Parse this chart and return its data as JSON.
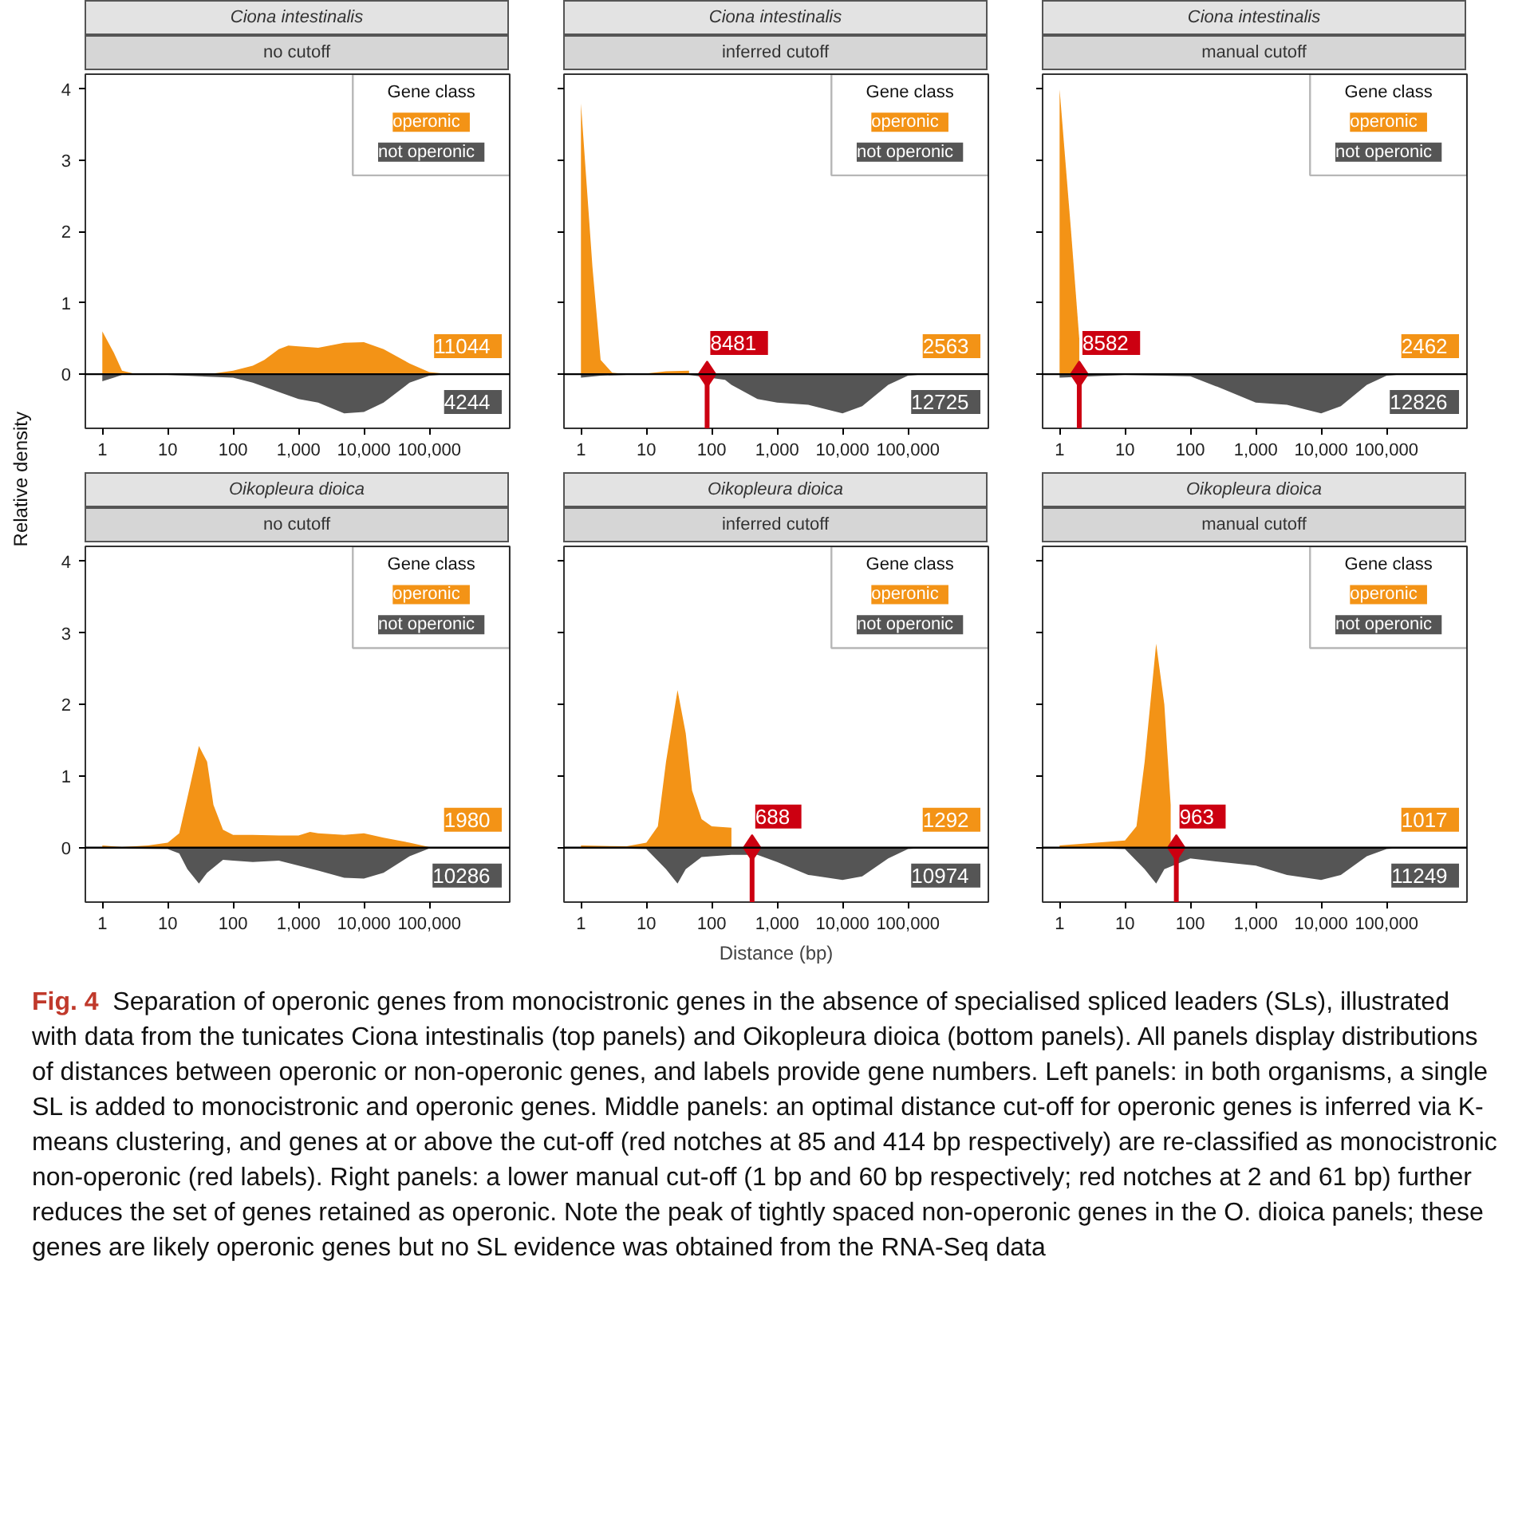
{
  "chart_data": [
    {
      "type": "area",
      "title": "Ciona intestinalis",
      "subtitle": "no cutoff",
      "ylabel": "Relative density",
      "log": "x",
      "xlim": [
        0.55,
        1700000
      ],
      "ylim": [
        -0.76,
        4.21
      ],
      "xticks": [
        1,
        10,
        100,
        {
          "value": 1000,
          "label": "1,000"
        },
        {
          "value": 10000,
          "label": "10,000"
        },
        {
          "value": 100000,
          "label": "100,000"
        }
      ],
      "yticks": [
        0,
        1,
        2,
        3,
        4
      ],
      "grid": false,
      "legend": "top right",
      "legend_title": "Gene class",
      "series": [
        {
          "name": "operonic",
          "color": "#f39316",
          "x": [
            1,
            1.5,
            2,
            3,
            10,
            50,
            100,
            200,
            300,
            500,
            700,
            1000,
            2000,
            3000,
            5000,
            10000,
            20000,
            50000,
            100000,
            200000,
            1000000
          ],
          "values": [
            0.6,
            0.3,
            0.05,
            0.01,
            0.01,
            0.01,
            0.05,
            0.12,
            0.2,
            0.35,
            0.4,
            0.39,
            0.37,
            0.4,
            0.44,
            0.45,
            0.35,
            0.15,
            0.03,
            0,
            0
          ]
        },
        {
          "name": "not operonic",
          "color": "#555555",
          "x": [
            1,
            1.5,
            2,
            10,
            100,
            200,
            500,
            1000,
            2000,
            5000,
            10000,
            20000,
            50000,
            100000,
            200000,
            1000000
          ],
          "values": [
            -0.1,
            -0.05,
            -0.01,
            -0.01,
            -0.05,
            -0.12,
            -0.25,
            -0.35,
            -0.4,
            -0.55,
            -0.53,
            -0.4,
            -0.12,
            -0.02,
            0,
            0
          ]
        }
      ],
      "ref_lines": [
        {
          "axis": "y",
          "value": 0,
          "color": "#000000"
        }
      ],
      "annotations": [
        "11044",
        "4244"
      ]
    },
    {
      "type": "area",
      "title": "Ciona intestinalis",
      "subtitle": "inferred cutoff",
      "log": "x",
      "xlim": [
        0.55,
        1700000
      ],
      "ylim": [
        -0.76,
        4.21
      ],
      "xticks": [
        1,
        10,
        100,
        {
          "value": 1000,
          "label": "1,000"
        },
        {
          "value": 10000,
          "label": "10,000"
        },
        {
          "value": 100000,
          "label": "100,000"
        }
      ],
      "yticks": [
        0,
        1,
        2,
        3,
        4
      ],
      "tick_labels": "x",
      "grid": false,
      "legend": "top right",
      "legend_title": "Gene class",
      "series": [
        {
          "name": "operonic",
          "color": "#f39316",
          "x": [
            1,
            1.5,
            2,
            3,
            5,
            10,
            20,
            45
          ],
          "values": [
            3.8,
            1.5,
            0.2,
            0.02,
            0,
            0.01,
            0.04,
            0.05
          ]
        },
        {
          "name": "not operonic",
          "color": "#555555",
          "x": [
            1,
            2,
            5,
            45,
            160,
            200,
            500,
            1000,
            3000,
            10000,
            20000,
            50000,
            100000,
            200000,
            1000000
          ],
          "values": [
            -0.05,
            -0.02,
            -0.01,
            -0.01,
            -0.08,
            -0.15,
            -0.35,
            -0.4,
            -0.43,
            -0.55,
            -0.45,
            -0.15,
            -0.02,
            0,
            0
          ]
        }
      ],
      "ref_lines": [
        {
          "axis": "y",
          "value": 0,
          "color": "#000000"
        },
        {
          "axis": "x",
          "value": 85,
          "color": "#cc0011"
        }
      ],
      "annotations": [
        "2563",
        "12725",
        {
          "text": "8481",
          "x": 85,
          "y": 0
        }
      ]
    },
    {
      "type": "area",
      "title": "Ciona intestinalis",
      "subtitle": "manual cutoff",
      "log": "x",
      "xlim": [
        0.55,
        1700000
      ],
      "ylim": [
        -0.76,
        4.21
      ],
      "xticks": [
        1,
        10,
        100,
        {
          "value": 1000,
          "label": "1,000"
        },
        {
          "value": 10000,
          "label": "10,000"
        },
        {
          "value": 100000,
          "label": "100,000"
        }
      ],
      "yticks": [
        0,
        1,
        2,
        3,
        4
      ],
      "tick_labels": "x",
      "grid": false,
      "legend": "top right",
      "legend_title": "Gene class",
      "series": [
        {
          "name": "operonic",
          "color": "#f39316",
          "x": [
            1,
            1.5,
            2
          ],
          "values": [
            4.0,
            2.0,
            0.5
          ]
        },
        {
          "name": "not operonic",
          "color": "#555555",
          "x": [
            1,
            10,
            100,
            300,
            1000,
            3000,
            10000,
            20000,
            50000,
            100000,
            200000,
            1000000
          ],
          "values": [
            -0.05,
            -0.01,
            -0.03,
            -0.2,
            -0.4,
            -0.43,
            -0.55,
            -0.45,
            -0.15,
            -0.02,
            0,
            0
          ]
        }
      ],
      "ref_lines": [
        {
          "axis": "y",
          "value": 0,
          "color": "#000000"
        },
        {
          "axis": "x",
          "value": 2,
          "color": "#cc0011"
        }
      ],
      "annotations": [
        "2462",
        "12826",
        {
          "text": "8582",
          "x": 2,
          "y": 0
        }
      ]
    },
    {
      "type": "area",
      "title": "Oikopleura dioica",
      "subtitle": "no cutoff",
      "log": "x",
      "xlim": [
        0.55,
        1700000
      ],
      "ylim": [
        -0.76,
        4.21
      ],
      "xticks": [
        1,
        10,
        100,
        {
          "value": 1000,
          "label": "1,000"
        },
        {
          "value": 10000,
          "label": "10,000"
        },
        {
          "value": 100000,
          "label": "100,000"
        }
      ],
      "yticks": [
        0,
        1,
        2,
        3,
        4
      ],
      "grid": false,
      "legend": "top right",
      "legend_title": "Gene class",
      "series": [
        {
          "name": "operonic",
          "color": "#f39316",
          "x": [
            1,
            2,
            5,
            10,
            15,
            20,
            30,
            40,
            50,
            70,
            100,
            200,
            500,
            1000,
            1500,
            2000,
            5000,
            10000,
            20000,
            50000,
            100000,
            200000,
            1000000
          ],
          "values": [
            0.03,
            0.01,
            0.03,
            0.07,
            0.2,
            0.7,
            1.42,
            1.2,
            0.6,
            0.25,
            0.18,
            0.18,
            0.17,
            0.17,
            0.22,
            0.2,
            0.18,
            0.2,
            0.14,
            0.07,
            0.01,
            0,
            0
          ]
        },
        {
          "name": "not operonic",
          "color": "#555555",
          "x": [
            1,
            10,
            15,
            20,
            30,
            40,
            70,
            100,
            200,
            500,
            1000,
            2000,
            5000,
            10000,
            20000,
            50000,
            100000,
            200000,
            1000000
          ],
          "values": [
            -0.01,
            -0.02,
            -0.08,
            -0.3,
            -0.5,
            -0.35,
            -0.17,
            -0.18,
            -0.2,
            -0.18,
            -0.25,
            -0.32,
            -0.42,
            -0.43,
            -0.35,
            -0.12,
            -0.01,
            0,
            0
          ]
        }
      ],
      "ref_lines": [
        {
          "axis": "y",
          "value": 0,
          "color": "#000000"
        }
      ],
      "annotations": [
        "1980",
        "10286"
      ]
    },
    {
      "type": "area",
      "title": "Oikopleura dioica",
      "subtitle": "inferred cutoff",
      "xlabel": "Distance (bp)",
      "log": "x",
      "xlim": [
        0.55,
        1700000
      ],
      "ylim": [
        -0.76,
        4.21
      ],
      "xticks": [
        1,
        10,
        100,
        {
          "value": 1000,
          "label": "1,000"
        },
        {
          "value": 10000,
          "label": "10,000"
        },
        {
          "value": 100000,
          "label": "100,000"
        }
      ],
      "yticks": [
        0,
        1,
        2,
        3,
        4
      ],
      "tick_labels": "x",
      "grid": false,
      "legend": "top right",
      "legend_title": "Gene class",
      "series": [
        {
          "name": "operonic",
          "color": "#f39316",
          "x": [
            1,
            5,
            10,
            15,
            20,
            30,
            40,
            50,
            70,
            100,
            200
          ],
          "values": [
            0.03,
            0.02,
            0.07,
            0.3,
            1.2,
            2.2,
            1.6,
            0.8,
            0.4,
            0.3,
            0.28
          ]
        },
        {
          "name": "not operonic",
          "color": "#555555",
          "x": [
            1,
            10,
            20,
            30,
            40,
            70,
            100,
            200,
            500,
            1000,
            3000,
            10000,
            20000,
            50000,
            100000,
            200000,
            1000000
          ],
          "values": [
            0,
            -0.02,
            -0.3,
            -0.5,
            -0.3,
            -0.13,
            -0.12,
            -0.1,
            -0.1,
            -0.2,
            -0.38,
            -0.45,
            -0.4,
            -0.15,
            -0.02,
            0,
            0
          ]
        }
      ],
      "ref_lines": [
        {
          "axis": "y",
          "value": 0,
          "color": "#000000"
        },
        {
          "axis": "x",
          "value": 414,
          "color": "#cc0011"
        }
      ],
      "annotations": [
        "1292",
        "10974",
        {
          "text": "688",
          "x": 414,
          "y": 0
        }
      ]
    },
    {
      "type": "area",
      "title": "Oikopleura dioica",
      "subtitle": "manual cutoff",
      "log": "x",
      "xlim": [
        0.55,
        1700000
      ],
      "ylim": [
        -0.76,
        4.21
      ],
      "xticks": [
        1,
        10,
        100,
        {
          "value": 1000,
          "label": "1,000"
        },
        {
          "value": 10000,
          "label": "10,000"
        },
        {
          "value": 100000,
          "label": "100,000"
        }
      ],
      "yticks": [
        0,
        1,
        2,
        3,
        4
      ],
      "tick_labels": "x",
      "grid": false,
      "legend": "top right",
      "legend_title": "Gene class",
      "series": [
        {
          "name": "operonic",
          "color": "#f39316",
          "x": [
            1,
            10,
            15,
            20,
            30,
            40,
            50
          ],
          "values": [
            0.03,
            0.1,
            0.3,
            1.2,
            2.85,
            2.0,
            0.6
          ]
        },
        {
          "name": "not operonic",
          "color": "#555555",
          "x": [
            1,
            10,
            20,
            30,
            40,
            100,
            300,
            1000,
            3000,
            10000,
            20000,
            50000,
            100000,
            200000,
            1000000
          ],
          "values": [
            0,
            -0.02,
            -0.3,
            -0.5,
            -0.3,
            -0.15,
            -0.2,
            -0.25,
            -0.38,
            -0.45,
            -0.38,
            -0.12,
            -0.02,
            0,
            0
          ]
        }
      ],
      "ref_lines": [
        {
          "axis": "y",
          "value": 0,
          "color": "#000000"
        },
        {
          "axis": "x",
          "value": 61,
          "color": "#cc0011"
        }
      ],
      "annotations": [
        "1017",
        "11249",
        {
          "text": "963",
          "x": 61,
          "y": 0
        },
        "Fig. 4",
        "Separation of operonic genes from monocistronic genes in the absence of specialised spliced leaders (SLs), illustrated with data from the tunicates Ciona intestinalis (top panels) and Oikopleura dioica (bottom panels). All panels display distributions of distances between operonic or non-operonic genes, and labels provide gene numbers. Left panels: in both organisms, a single SL is added to monocistronic and operonic genes. Middle panels: an optimal distance cut-off for operonic genes is inferred via K-means clustering, and genes at or above the cut-off (red notches at 85 and 414 bp respectively) are re-classified as monocistronic non-operonic (red labels). Right panels: a lower manual cut-off (1 bp and 60 bp respectively; red notches at 2 and 61 bp) further reduces the set of genes retained as operonic. Note the peak of tightly spaced non-operonic genes in the O. dioica panels; these genes are likely operonic genes but no SL evidence was obtained from the RNA-Seq data"
      ]
    }
  ]
}
